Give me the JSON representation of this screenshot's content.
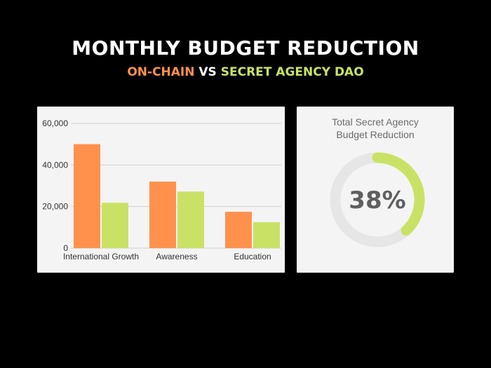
{
  "header": {
    "title": "MONTHLY BUDGET REDUCTION",
    "subtitle_left": "ON-CHAIN",
    "subtitle_vs": " VS ",
    "subtitle_right": "SECRET AGENCY DAO"
  },
  "colors": {
    "on_chain": "#ff914d",
    "secret_agency": "#c9e265",
    "ring_track": "#e6e6e6",
    "grid": "#cfcfcf"
  },
  "chart_data": [
    {
      "type": "bar",
      "categories": [
        "International Growth",
        "Awareness",
        "Education"
      ],
      "series": [
        {
          "values": [
            50000,
            32000,
            17500
          ]
        },
        {
          "values": [
            21800,
            27200,
            12500
          ]
        }
      ],
      "yticks": [
        "0",
        "20,000",
        "40,000",
        "60,000"
      ],
      "ylim": [
        0,
        60000
      ],
      "grid": true
    },
    {
      "type": "pie",
      "title": "Total Secret Agency Budget Reduction",
      "title_lines": [
        "Total Secret Agency",
        "Budget Reduction"
      ],
      "value": 38,
      "value_label": "38%"
    }
  ]
}
